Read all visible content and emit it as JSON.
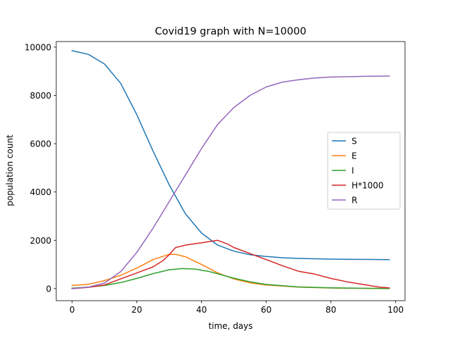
{
  "chart_data": {
    "type": "line",
    "title": "Covid19 graph with N=10000",
    "xlabel": "time, days",
    "ylabel": "population count",
    "xlim": [
      -4.9,
      102.9
    ],
    "ylim": [
      -500,
      10230
    ],
    "xticks": [
      0,
      20,
      40,
      60,
      80,
      100
    ],
    "yticks": [
      0,
      2000,
      4000,
      6000,
      8000,
      10000
    ],
    "grid": false,
    "legend_position": "center-right",
    "series": [
      {
        "name": "S",
        "color": "#1f77b4",
        "x": [
          0,
          5,
          10,
          15,
          20,
          25,
          30,
          35,
          40,
          45,
          50,
          55,
          60,
          65,
          70,
          80,
          90,
          98
        ],
        "y": [
          9850,
          9700,
          9300,
          8500,
          7200,
          5700,
          4300,
          3100,
          2300,
          1800,
          1550,
          1400,
          1330,
          1280,
          1250,
          1220,
          1210,
          1200
        ]
      },
      {
        "name": "E",
        "color": "#ff7f0e",
        "x": [
          0,
          5,
          10,
          15,
          20,
          25,
          30,
          32,
          35,
          40,
          45,
          50,
          55,
          60,
          70,
          80,
          90,
          98
        ],
        "y": [
          130,
          180,
          330,
          550,
          850,
          1200,
          1420,
          1420,
          1320,
          1000,
          650,
          400,
          240,
          150,
          60,
          25,
          10,
          5
        ]
      },
      {
        "name": "I",
        "color": "#2ca02c",
        "x": [
          0,
          5,
          10,
          15,
          20,
          25,
          30,
          34,
          38,
          42,
          46,
          50,
          55,
          60,
          70,
          80,
          90,
          98
        ],
        "y": [
          20,
          60,
          130,
          250,
          420,
          620,
          780,
          830,
          810,
          720,
          580,
          430,
          280,
          170,
          70,
          30,
          12,
          5
        ]
      },
      {
        "name": "H*1000",
        "color": "#d62728",
        "x": [
          0,
          5,
          10,
          15,
          20,
          25,
          28,
          30,
          32,
          35,
          40,
          45,
          48,
          50,
          55,
          60,
          65,
          70,
          75,
          80,
          85,
          90,
          95,
          98
        ],
        "y": [
          0,
          50,
          150,
          400,
          650,
          900,
          1150,
          1400,
          1700,
          1800,
          1900,
          2000,
          1850,
          1700,
          1450,
          1200,
          950,
          720,
          600,
          420,
          280,
          170,
          60,
          30
        ]
      },
      {
        "name": "R",
        "color": "#9467bd",
        "x": [
          0,
          5,
          10,
          15,
          20,
          25,
          30,
          35,
          40,
          45,
          50,
          55,
          60,
          65,
          70,
          75,
          80,
          90,
          98
        ],
        "y": [
          0,
          60,
          230,
          700,
          1500,
          2500,
          3600,
          4700,
          5800,
          6800,
          7500,
          8000,
          8350,
          8550,
          8650,
          8720,
          8760,
          8790,
          8800
        ]
      }
    ]
  }
}
